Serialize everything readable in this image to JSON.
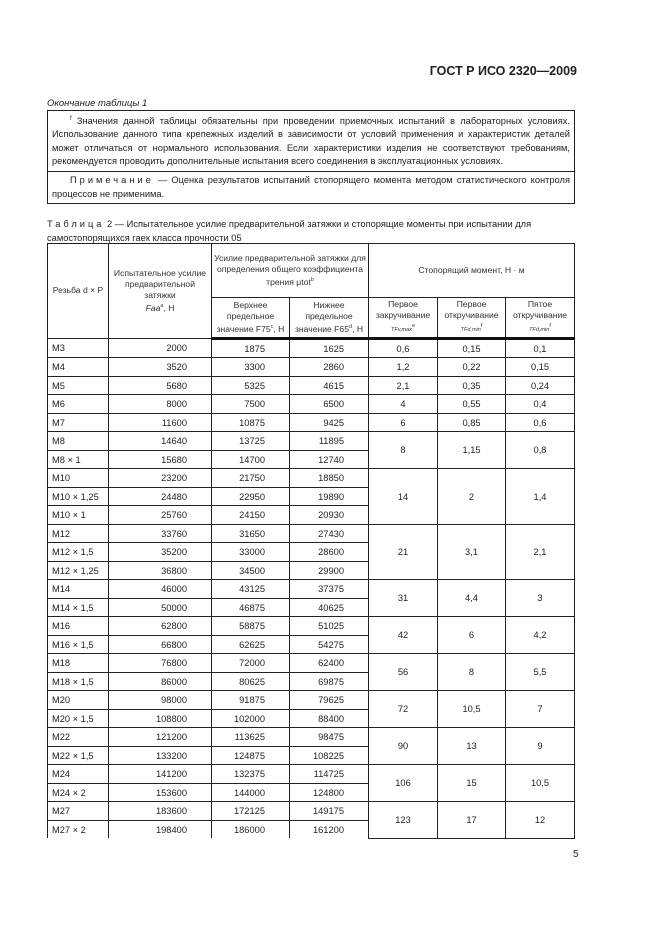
{
  "header": {
    "doc_id": "ГОСТ Р ИСО 2320—2009"
  },
  "continuation": "Окончание таблицы 1",
  "note_box": {
    "footnote_mark": "f",
    "footnote_text": "Значения данной таблицы обязательны при проведении приемочных испытаний в лабораторных условиях. Использование данного типа крепежных изделий в зависимости от условий применения и характеристик деталей может отличаться от нормального использования. Если характеристики изделия не соответствуют требованиям, рекомендуется проводить дополнительные испытания всего соединения в эксплуатационных условиях.",
    "note_label": "Примечание",
    "note_text": " — Оценка результатов испытаний стопорящего момента методом статистического контроля процессов не применима."
  },
  "caption": {
    "label": "Таблица",
    "text": " 2 — Испытательное усилие предварительной затяжки и стопорящие моменты при испытании для самостопорящихся гаек класса прочности 05"
  },
  "table": {
    "headers": {
      "thread": "Резьба d × P",
      "test_force": "Испытательное усилие предварительной затяжки",
      "test_force_sym": "Faa",
      "test_force_mark": "a",
      "test_force_unit": ", Н",
      "preload_group": "Усилие предварительной затяжки для определения общего коэффициента трения μtot",
      "preload_mark": "b",
      "upper": "Верхнее предельное значение F75",
      "upper_mark": "c",
      "lower": "Нижнее предельное значение F65",
      "lower_mark": "d",
      "unit_n": ", Н",
      "torque_group": "Стопорящий момент, Н · м",
      "first_on": "Первое закручивание",
      "first_on_sym": "TFv,max",
      "first_on_mark": "e",
      "first_off": "Первое откручивание",
      "first_off_sym": "TFd,min",
      "first_off_mark": "f",
      "fifth_off": "Пятое откручивание",
      "fifth_off_sym": "TFd,min",
      "fifth_off_mark": "f"
    },
    "groups": [
      {
        "torque": [
          "0,6",
          "0,15",
          "0,1"
        ],
        "rows": [
          [
            "M3",
            "2000",
            "1875",
            "1625"
          ]
        ]
      },
      {
        "torque": [
          "1,2",
          "0,22",
          "0,15"
        ],
        "rows": [
          [
            "M4",
            "3520",
            "3300",
            "2860"
          ]
        ]
      },
      {
        "torque": [
          "2,1",
          "0,35",
          "0,24"
        ],
        "rows": [
          [
            "M5",
            "5680",
            "5325",
            "4615"
          ]
        ]
      },
      {
        "torque": [
          "4",
          "0,55",
          "0,4"
        ],
        "rows": [
          [
            "M6",
            "8000",
            "7500",
            "6500"
          ]
        ]
      },
      {
        "torque": [
          "6",
          "0,85",
          "0,6"
        ],
        "rows": [
          [
            "M7",
            "11600",
            "10875",
            "9425"
          ]
        ]
      },
      {
        "torque": [
          "8",
          "1,15",
          "0,8"
        ],
        "rows": [
          [
            "M8",
            "14640",
            "13725",
            "11895"
          ],
          [
            "M8 × 1",
            "15680",
            "14700",
            "12740"
          ]
        ]
      },
      {
        "torque": [
          "14",
          "2",
          "1,4"
        ],
        "rows": [
          [
            "M10",
            "23200",
            "21750",
            "18850"
          ],
          [
            "M10 × 1,25",
            "24480",
            "22950",
            "19890"
          ],
          [
            "M10 × 1",
            "25760",
            "24150",
            "20930"
          ]
        ]
      },
      {
        "torque": [
          "21",
          "3,1",
          "2,1"
        ],
        "rows": [
          [
            "M12",
            "33760",
            "31650",
            "27430"
          ],
          [
            "M12 × 1,5",
            "35200",
            "33000",
            "28600"
          ],
          [
            "M12 × 1,25",
            "36800",
            "34500",
            "29900"
          ]
        ]
      },
      {
        "torque": [
          "31",
          "4,4",
          "3"
        ],
        "rows": [
          [
            "M14",
            "46000",
            "43125",
            "37375"
          ],
          [
            "M14 × 1,5",
            "50000",
            "46875",
            "40625"
          ]
        ]
      },
      {
        "torque": [
          "42",
          "6",
          "4,2"
        ],
        "rows": [
          [
            "M16",
            "62800",
            "58875",
            "51025"
          ],
          [
            "M16 × 1,5",
            "66800",
            "62625",
            "54275"
          ]
        ]
      },
      {
        "torque": [
          "56",
          "8",
          "5,5"
        ],
        "rows": [
          [
            "M18",
            "76800",
            "72000",
            "62400"
          ],
          [
            "M18 × 1,5",
            "86000",
            "80625",
            "69875"
          ]
        ]
      },
      {
        "torque": [
          "72",
          "10,5",
          "7"
        ],
        "rows": [
          [
            "M20",
            "98000",
            "91875",
            "79625"
          ],
          [
            "M20 × 1,5",
            "108800",
            "102000",
            "88400"
          ]
        ]
      },
      {
        "torque": [
          "90",
          "13",
          "9"
        ],
        "rows": [
          [
            "M22",
            "121200",
            "113625",
            "98475"
          ],
          [
            "M22 × 1,5",
            "133200",
            "124875",
            "108225"
          ]
        ]
      },
      {
        "torque": [
          "106",
          "15",
          "10,5"
        ],
        "rows": [
          [
            "M24",
            "141200",
            "132375",
            "114725"
          ],
          [
            "M24 × 2",
            "153600",
            "144000",
            "124800"
          ]
        ]
      },
      {
        "torque": [
          "123",
          "17",
          "12"
        ],
        "rows": [
          [
            "M27",
            "183600",
            "172125",
            "149175"
          ],
          [
            "M27 × 2",
            "198400",
            "186000",
            "161200"
          ]
        ]
      }
    ]
  },
  "page_number": "5"
}
